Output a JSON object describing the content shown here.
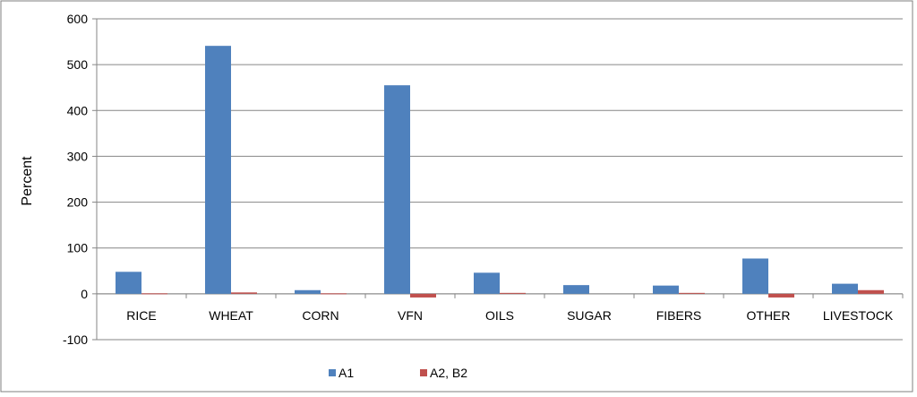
{
  "chart_data": {
    "type": "bar",
    "ylabel": "Percent",
    "xlabel": "",
    "title": "",
    "ylim": [
      -100,
      600
    ],
    "yticks": [
      -100,
      0,
      100,
      200,
      300,
      400,
      500,
      600
    ],
    "categories": [
      "RICE",
      "WHEAT",
      "CORN",
      "VFN",
      "OILS",
      "SUGAR",
      "FIBERS",
      "OTHER",
      "LIVESTOCK"
    ],
    "series": [
      {
        "name": "A1",
        "color": "#4F81BD",
        "values": [
          48,
          541,
          8,
          455,
          46,
          19,
          18,
          77,
          22
        ]
      },
      {
        "name": "A2, B2",
        "color": "#C0504D",
        "values": [
          1,
          3,
          1,
          -8,
          2,
          0,
          2,
          -8,
          8
        ]
      }
    ],
    "grid": true,
    "legend_position": "bottom"
  }
}
